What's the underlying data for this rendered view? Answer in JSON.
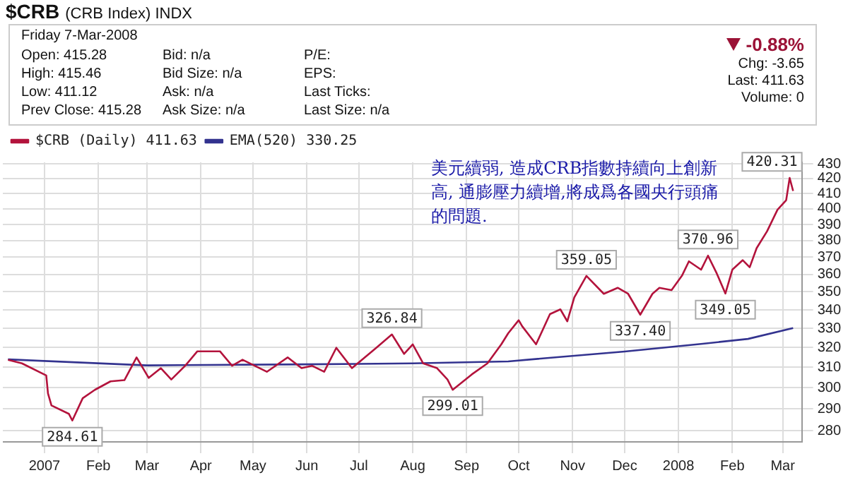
{
  "chart_data": {
    "type": "line",
    "title": "$CRB",
    "subtitle": "(CRB Index) INDX",
    "series": [
      {
        "name": "$CRB (Daily) 411.63",
        "color": "#b3133c",
        "x": [
          "2006-12-11",
          "2006-12-19",
          "2007-01-02",
          "2007-01-03",
          "2007-01-05",
          "2007-01-15",
          "2007-01-17",
          "2007-01-23",
          "2007-01-30",
          "2007-02-08",
          "2007-02-16",
          "2007-02-23",
          "2007-03-02",
          "2007-03-09",
          "2007-03-15",
          "2007-03-23",
          "2007-03-30",
          "2007-04-12",
          "2007-04-19",
          "2007-04-25",
          "2007-05-09",
          "2007-05-21",
          "2007-05-29",
          "2007-06-04",
          "2007-06-11",
          "2007-06-18",
          "2007-06-27",
          "2007-07-11",
          "2007-07-20",
          "2007-07-27",
          "2007-08-01",
          "2007-08-07",
          "2007-08-15",
          "2007-08-21",
          "2007-08-24",
          "2007-09-04",
          "2007-09-13",
          "2007-09-21",
          "2007-09-25",
          "2007-10-01",
          "2007-10-03",
          "2007-10-11",
          "2007-10-19",
          "2007-10-25",
          "2007-10-29",
          "2007-11-02",
          "2007-11-09",
          "2007-11-19",
          "2007-11-27",
          "2007-12-03",
          "2007-12-10",
          "2007-12-17",
          "2007-12-21",
          "2007-12-28",
          "2008-01-03",
          "2008-01-07",
          "2008-01-14",
          "2008-01-18",
          "2008-01-23",
          "2008-01-28",
          "2008-02-01",
          "2008-02-07",
          "2008-02-11",
          "2008-02-15",
          "2008-02-21",
          "2008-02-27",
          "2008-03-03",
          "2008-03-05",
          "2008-03-07"
        ],
        "values": [
          313.8,
          312,
          306,
          297.3,
          291.6,
          287.7,
          284.61,
          295,
          299,
          303.1,
          303.7,
          315,
          304.8,
          309.6,
          304,
          310.8,
          318.1,
          318.1,
          310.8,
          313.8,
          307.8,
          315,
          309.6,
          310.8,
          307.8,
          319.9,
          309.6,
          319.9,
          326.84,
          316.8,
          321.7,
          312,
          309.6,
          304,
          299.01,
          306.5,
          312,
          321.7,
          327.5,
          334.4,
          331.2,
          321.7,
          337.7,
          340.3,
          333.8,
          346.9,
          359.05,
          348.9,
          352.3,
          348.9,
          337.4,
          348.9,
          352.3,
          351,
          359.2,
          367.6,
          362.7,
          370.96,
          360.6,
          349.05,
          362.7,
          368.3,
          364.1,
          375.5,
          385.8,
          399.4,
          405.6,
          420.31,
          411.63
        ]
      },
      {
        "name": "EMA(520) 330.25",
        "color": "#33338f",
        "x": [
          "2006-12-11",
          "2007-03-01",
          "2007-06-01",
          "2007-08-01",
          "2007-09-25",
          "2007-12-01",
          "2008-01-15",
          "2008-02-10",
          "2008-03-07"
        ],
        "values": [
          314,
          311,
          311.5,
          312,
          313,
          318,
          322,
          324.5,
          330.25
        ]
      }
    ],
    "xlim": [
      "2006-12-08",
      "2008-03-12"
    ],
    "xticks": [
      {
        "value": "2007-01-01",
        "label": "2007"
      },
      {
        "value": "2007-02-01",
        "label": "Feb"
      },
      {
        "value": "2007-03-01",
        "label": "Mar"
      },
      {
        "value": "2007-04-01",
        "label": "Apr"
      },
      {
        "value": "2007-05-01",
        "label": "May"
      },
      {
        "value": "2007-06-01",
        "label": "Jun"
      },
      {
        "value": "2007-07-01",
        "label": "Jul"
      },
      {
        "value": "2007-08-01",
        "label": "Aug"
      },
      {
        "value": "2007-09-01",
        "label": "Sep"
      },
      {
        "value": "2007-10-01",
        "label": "Oct"
      },
      {
        "value": "2007-11-01",
        "label": "Nov"
      },
      {
        "value": "2007-12-01",
        "label": "Dec"
      },
      {
        "value": "2008-01-01",
        "label": "2008"
      },
      {
        "value": "2008-02-01",
        "label": "Feb"
      },
      {
        "value": "2008-03-01",
        "label": "Mar"
      }
    ],
    "ylim": [
      275,
      431
    ],
    "yticks": [
      280,
      290,
      300,
      310,
      320,
      330,
      340,
      350,
      360,
      370,
      380,
      390,
      400,
      410,
      420,
      430
    ],
    "log": true,
    "grid": true,
    "legend": "top left",
    "annotations": [
      "Friday  7-Mar-2008",
      "Open: 415.28",
      "Bid: n/a",
      "P/E:",
      "High: 415.46",
      "Bid Size: n/a",
      "EPS:",
      "Low: 411.12",
      "Ask: n/a",
      "Last Ticks:",
      "Prev Close: 415.28",
      "Ask Size: n/a",
      "Last Size: n/a",
      "-0.88%",
      "Chg: -3.65",
      "Last: 411.63",
      "Volume: 0",
      "美元續弱, 造成CRB指數持續向上創新高, 通膨壓力續增,將成爲各國央行頭痛的問題.",
      {
        "text": "284.61",
        "x": "2007-01-17",
        "y": 284.61
      },
      {
        "text": "326.84",
        "x": "2007-07-20",
        "y": 326.84
      },
      {
        "text": "299.01",
        "x": "2007-08-24",
        "y": 299.01
      },
      {
        "text": "359.05",
        "x": "2007-11-09",
        "y": 359.05
      },
      {
        "text": "337.40",
        "x": "2007-12-10",
        "y": 337.4
      },
      {
        "text": "370.96",
        "x": "2008-01-18",
        "y": 370.96
      },
      {
        "text": "349.05",
        "x": "2008-01-28",
        "y": 349.05
      },
      {
        "text": "420.31",
        "x": "2008-03-05",
        "y": 420.31
      }
    ]
  }
}
